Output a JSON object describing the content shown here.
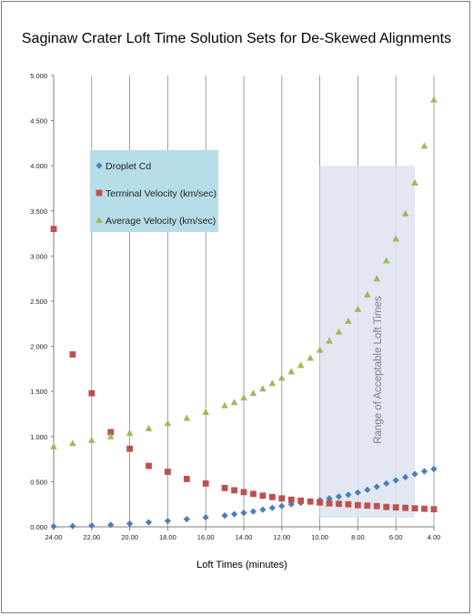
{
  "chart_data": {
    "type": "scatter",
    "title": "Saginaw Crater Loft Time Solution Sets for De-Skewed Alignments",
    "xlabel": "Loft Times (minutes)",
    "ylabel": "",
    "xlim": [
      24,
      4
    ],
    "ylim": [
      0,
      5
    ],
    "x_reversed": true,
    "grid": "vertical",
    "x_ticks": [
      "24.00",
      "22.00",
      "20.00",
      "18.00",
      "16.00",
      "14.00",
      "12.00",
      "10.00",
      "8.00",
      "6.00",
      "4.00"
    ],
    "y_ticks": [
      "0.000",
      "0.500",
      "1.000",
      "1.500",
      "2.000",
      "2.500",
      "3.000",
      "3.500",
      "4.000",
      "4.500",
      "5.000"
    ],
    "legend_position": "upper-left",
    "annotation": {
      "text": "Range of Acceptable Loft Times",
      "x_range": [
        10,
        5
      ],
      "y_range": [
        0.1,
        4.0
      ],
      "color": "#dde3f0"
    },
    "series": [
      {
        "name": "Droplet Cd",
        "marker": "diamond",
        "color": "#4a7ebb",
        "points": [
          [
            24,
            0.005
          ],
          [
            23,
            0.008
          ],
          [
            22,
            0.014
          ],
          [
            21,
            0.022
          ],
          [
            20,
            0.035
          ],
          [
            19,
            0.05
          ],
          [
            18,
            0.065
          ],
          [
            17,
            0.085
          ],
          [
            16,
            0.105
          ],
          [
            15,
            0.125
          ],
          [
            14.5,
            0.14
          ],
          [
            14,
            0.155
          ],
          [
            13.5,
            0.17
          ],
          [
            13,
            0.19
          ],
          [
            12.5,
            0.21
          ],
          [
            12,
            0.23
          ],
          [
            11.5,
            0.25
          ],
          [
            11,
            0.265
          ],
          [
            10.5,
            0.28
          ],
          [
            10,
            0.295
          ],
          [
            9.5,
            0.315
          ],
          [
            9,
            0.335
          ],
          [
            8.5,
            0.355
          ],
          [
            8,
            0.38
          ],
          [
            7.5,
            0.41
          ],
          [
            7,
            0.445
          ],
          [
            6.5,
            0.48
          ],
          [
            6,
            0.515
          ],
          [
            5.5,
            0.55
          ],
          [
            5,
            0.585
          ],
          [
            4.5,
            0.615
          ],
          [
            4,
            0.64
          ]
        ]
      },
      {
        "name": "Terminal Velocity (km/sec)",
        "marker": "square",
        "color": "#c0504d",
        "points": [
          [
            24,
            3.3
          ],
          [
            23,
            1.91
          ],
          [
            22,
            1.48
          ],
          [
            21,
            1.05
          ],
          [
            20,
            0.865
          ],
          [
            19,
            0.675
          ],
          [
            18,
            0.61
          ],
          [
            17,
            0.53
          ],
          [
            16,
            0.48
          ],
          [
            15,
            0.43
          ],
          [
            14.5,
            0.405
          ],
          [
            14,
            0.385
          ],
          [
            13.5,
            0.365
          ],
          [
            13,
            0.345
          ],
          [
            12.5,
            0.33
          ],
          [
            12,
            0.315
          ],
          [
            11.5,
            0.3
          ],
          [
            11,
            0.29
          ],
          [
            10.5,
            0.28
          ],
          [
            10,
            0.27
          ],
          [
            9.5,
            0.26
          ],
          [
            9,
            0.255
          ],
          [
            8.5,
            0.25
          ],
          [
            8,
            0.24
          ],
          [
            7.5,
            0.235
          ],
          [
            7,
            0.23
          ],
          [
            6.5,
            0.22
          ],
          [
            6,
            0.215
          ],
          [
            5.5,
            0.21
          ],
          [
            5,
            0.205
          ],
          [
            4.5,
            0.2
          ],
          [
            4,
            0.195
          ]
        ]
      },
      {
        "name": "Average Velocity (km/sec)",
        "marker": "triangle",
        "color": "#9bbb59",
        "points": [
          [
            24,
            0.89
          ],
          [
            23,
            0.925
          ],
          [
            22,
            0.96
          ],
          [
            21,
            1.0
          ],
          [
            20,
            1.04
          ],
          [
            19,
            1.09
          ],
          [
            18,
            1.145
          ],
          [
            17,
            1.205
          ],
          [
            16,
            1.27
          ],
          [
            15,
            1.345
          ],
          [
            14.5,
            1.38
          ],
          [
            14,
            1.43
          ],
          [
            13.5,
            1.48
          ],
          [
            13,
            1.53
          ],
          [
            12.5,
            1.59
          ],
          [
            12,
            1.65
          ],
          [
            11.5,
            1.72
          ],
          [
            11,
            1.79
          ],
          [
            10.5,
            1.87
          ],
          [
            10,
            1.96
          ],
          [
            9.5,
            2.06
          ],
          [
            9,
            2.16
          ],
          [
            8.5,
            2.28
          ],
          [
            8,
            2.41
          ],
          [
            7.5,
            2.57
          ],
          [
            7,
            2.75
          ],
          [
            6.5,
            2.95
          ],
          [
            6,
            3.19
          ],
          [
            5.5,
            3.47
          ],
          [
            5,
            3.81
          ],
          [
            4.5,
            4.22
          ],
          [
            4,
            4.73
          ]
        ]
      }
    ]
  }
}
